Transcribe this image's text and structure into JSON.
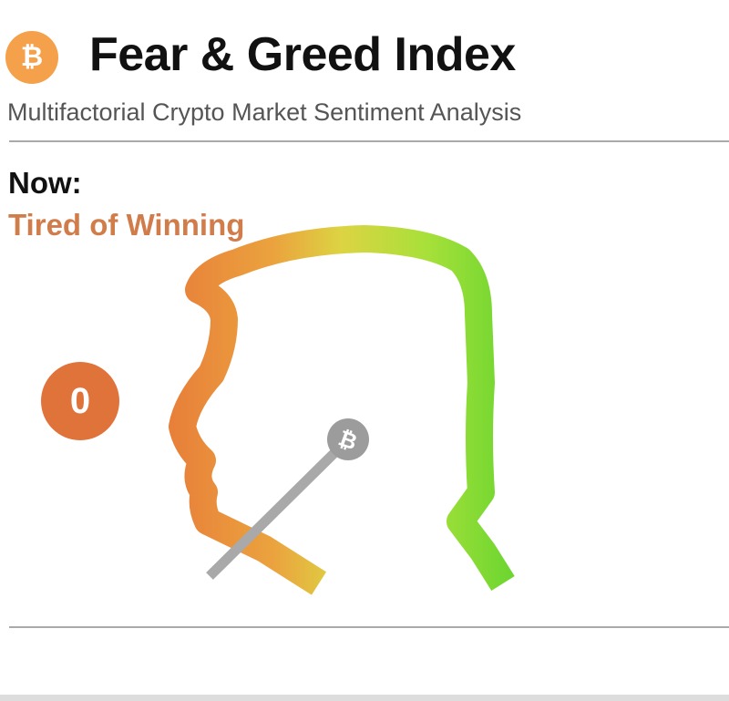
{
  "header": {
    "logo_icon": "bitcoin-icon",
    "logo_symbol": "₿",
    "title": "Fear & Greed Index",
    "subtitle": "Multifactorial Crypto Market Sentiment Analysis"
  },
  "current": {
    "label": "Now:",
    "status": "Tired of Winning",
    "value": "0",
    "value_color": "#e0733a"
  },
  "gauge": {
    "needle_value": 0,
    "needle_icon": "bitcoin-icon",
    "needle_symbol": "₿",
    "colors": {
      "fear": "#e8803a",
      "neutral": "#e0d840",
      "greed": "#6ed630"
    }
  }
}
